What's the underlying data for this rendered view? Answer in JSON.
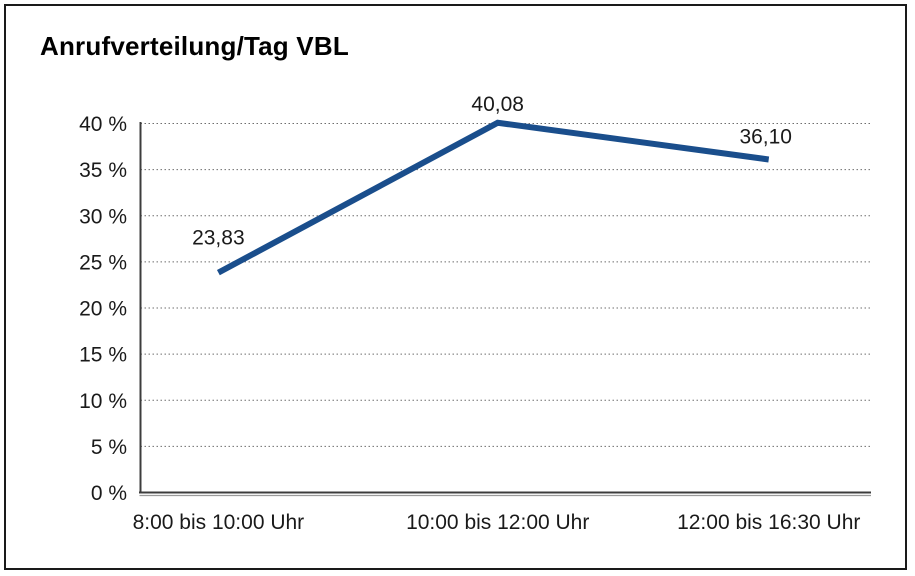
{
  "chart_data": {
    "type": "line",
    "title": "Anrufverteilung/Tag VBL",
    "categories": [
      "8:00 bis 10:00 Uhr",
      "10:00 bis 12:00 Uhr",
      "12:00 bis 16:30 Uhr"
    ],
    "values": [
      23.83,
      40.08,
      36.1
    ],
    "data_labels": [
      "23,83",
      "40,08",
      "36,10"
    ],
    "series_name": "Anrufverteilung/Tag VBL",
    "xlabel": "",
    "ylabel": "",
    "ylim": [
      0,
      40
    ],
    "ytick_step": 5,
    "ytick_labels": [
      "0 %",
      "5 %",
      "10 %",
      "15 %",
      "20 %",
      "25 %",
      "30 %",
      "35 %",
      "40 %"
    ],
    "grid": "dotted-horizontal",
    "legend_position": "none",
    "colors": {
      "line": "#1A4E8C",
      "gridline": "#6e6e6e",
      "axis": "#3c3c3c",
      "axis_shadow": "#9a9a9a",
      "text": "#1a1a1a",
      "frame_border": "#1a1a1a",
      "background": "#ffffff"
    }
  }
}
